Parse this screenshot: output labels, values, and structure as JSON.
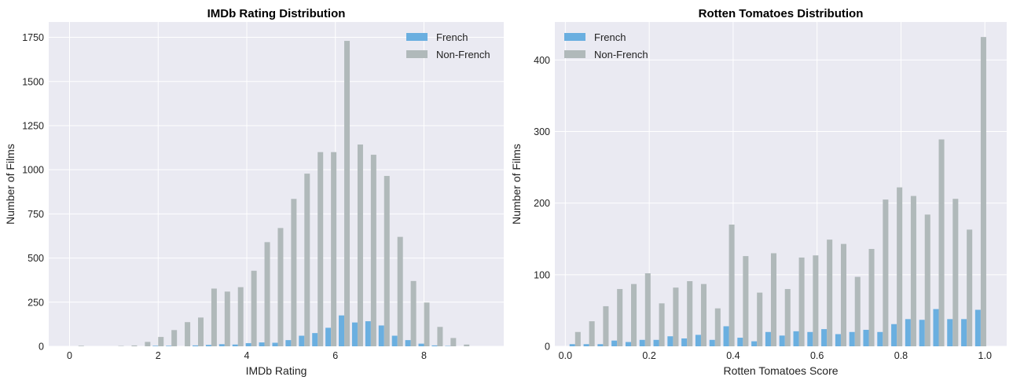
{
  "chart_data": [
    {
      "type": "bar",
      "title": "IMDb Rating Distribution",
      "xlabel": "IMDb Rating",
      "ylabel": "Number of Films",
      "xlim": [
        -0.47,
        9.8
      ],
      "ylim": [
        0,
        1837
      ],
      "xticks": [
        0,
        2,
        4,
        6,
        8
      ],
      "xtick_labels": [
        "0",
        "2",
        "4",
        "6",
        "8"
      ],
      "yticks": [
        0,
        250,
        500,
        750,
        1000,
        1250,
        1500,
        1750
      ],
      "ytick_labels": [
        "0",
        "250",
        "500",
        "750",
        "1000",
        "1250",
        "1500",
        "1750"
      ],
      "grid": true,
      "legend": "top-right",
      "bar_width": 0.124,
      "x": [
        0.2,
        0.5,
        0.8,
        1.1,
        1.4,
        1.7,
        2.0,
        2.3,
        2.6,
        2.9,
        3.2,
        3.5,
        3.8,
        4.1,
        4.4,
        4.7,
        5.0,
        5.3,
        5.6,
        5.9,
        6.2,
        6.5,
        6.8,
        7.1,
        7.4,
        7.7,
        8.0,
        8.3,
        8.6,
        8.9,
        9.2
      ],
      "series": [
        {
          "name": "French",
          "color": "#6aafe0",
          "values": [
            0,
            0,
            0,
            0,
            0,
            0,
            3,
            3,
            0,
            5,
            8,
            12,
            10,
            18,
            22,
            20,
            35,
            60,
            75,
            105,
            175,
            135,
            142,
            118,
            60,
            35,
            15,
            5,
            2,
            0,
            0
          ]
        },
        {
          "name": "Non-French",
          "color": "#b0b9ba",
          "values": [
            3,
            0,
            0,
            2,
            5,
            25,
            53,
            92,
            137,
            163,
            327,
            310,
            335,
            428,
            590,
            670,
            835,
            978,
            1100,
            1100,
            1730,
            1143,
            1085,
            965,
            620,
            370,
            248,
            110,
            47,
            10,
            0
          ]
        }
      ]
    },
    {
      "type": "bar",
      "title": "Rotten Tomatoes Distribution",
      "xlabel": "Rotten Tomatoes Score",
      "ylabel": "Number of Films",
      "xlim": [
        -0.025,
        1.052
      ],
      "ylim": [
        0,
        453
      ],
      "xticks": [
        0.0,
        0.2,
        0.4,
        0.6,
        0.8,
        1.0
      ],
      "xtick_labels": [
        "0.0",
        "0.2",
        "0.4",
        "0.6",
        "0.8",
        "1.0"
      ],
      "yticks": [
        0,
        100,
        200,
        300,
        400
      ],
      "ytick_labels": [
        "0",
        "100",
        "200",
        "300",
        "400"
      ],
      "grid": true,
      "legend": "top-left",
      "bar_width": 0.0132,
      "x": [
        0.0233,
        0.0567,
        0.09,
        0.1233,
        0.1567,
        0.19,
        0.2233,
        0.2567,
        0.29,
        0.3233,
        0.3567,
        0.39,
        0.4233,
        0.4567,
        0.49,
        0.5233,
        0.5567,
        0.59,
        0.6233,
        0.6567,
        0.69,
        0.7233,
        0.7567,
        0.79,
        0.8233,
        0.8567,
        0.89,
        0.9233,
        0.9567,
        0.99
      ],
      "series": [
        {
          "name": "French",
          "color": "#6aafe0",
          "values": [
            3,
            3,
            3,
            8,
            6,
            9,
            9,
            14,
            11,
            16,
            9,
            28,
            12,
            7,
            20,
            15,
            21,
            20,
            24,
            17,
            20,
            23,
            20,
            31,
            38,
            37,
            52,
            38,
            38,
            51
          ]
        },
        {
          "name": "Non-French",
          "color": "#b0b9ba",
          "values": [
            20,
            35,
            56,
            80,
            87,
            102,
            60,
            82,
            91,
            87,
            53,
            170,
            126,
            75,
            130,
            80,
            124,
            127,
            149,
            143,
            97,
            136,
            205,
            222,
            210,
            184,
            289,
            206,
            163,
            432
          ]
        }
      ]
    }
  ]
}
